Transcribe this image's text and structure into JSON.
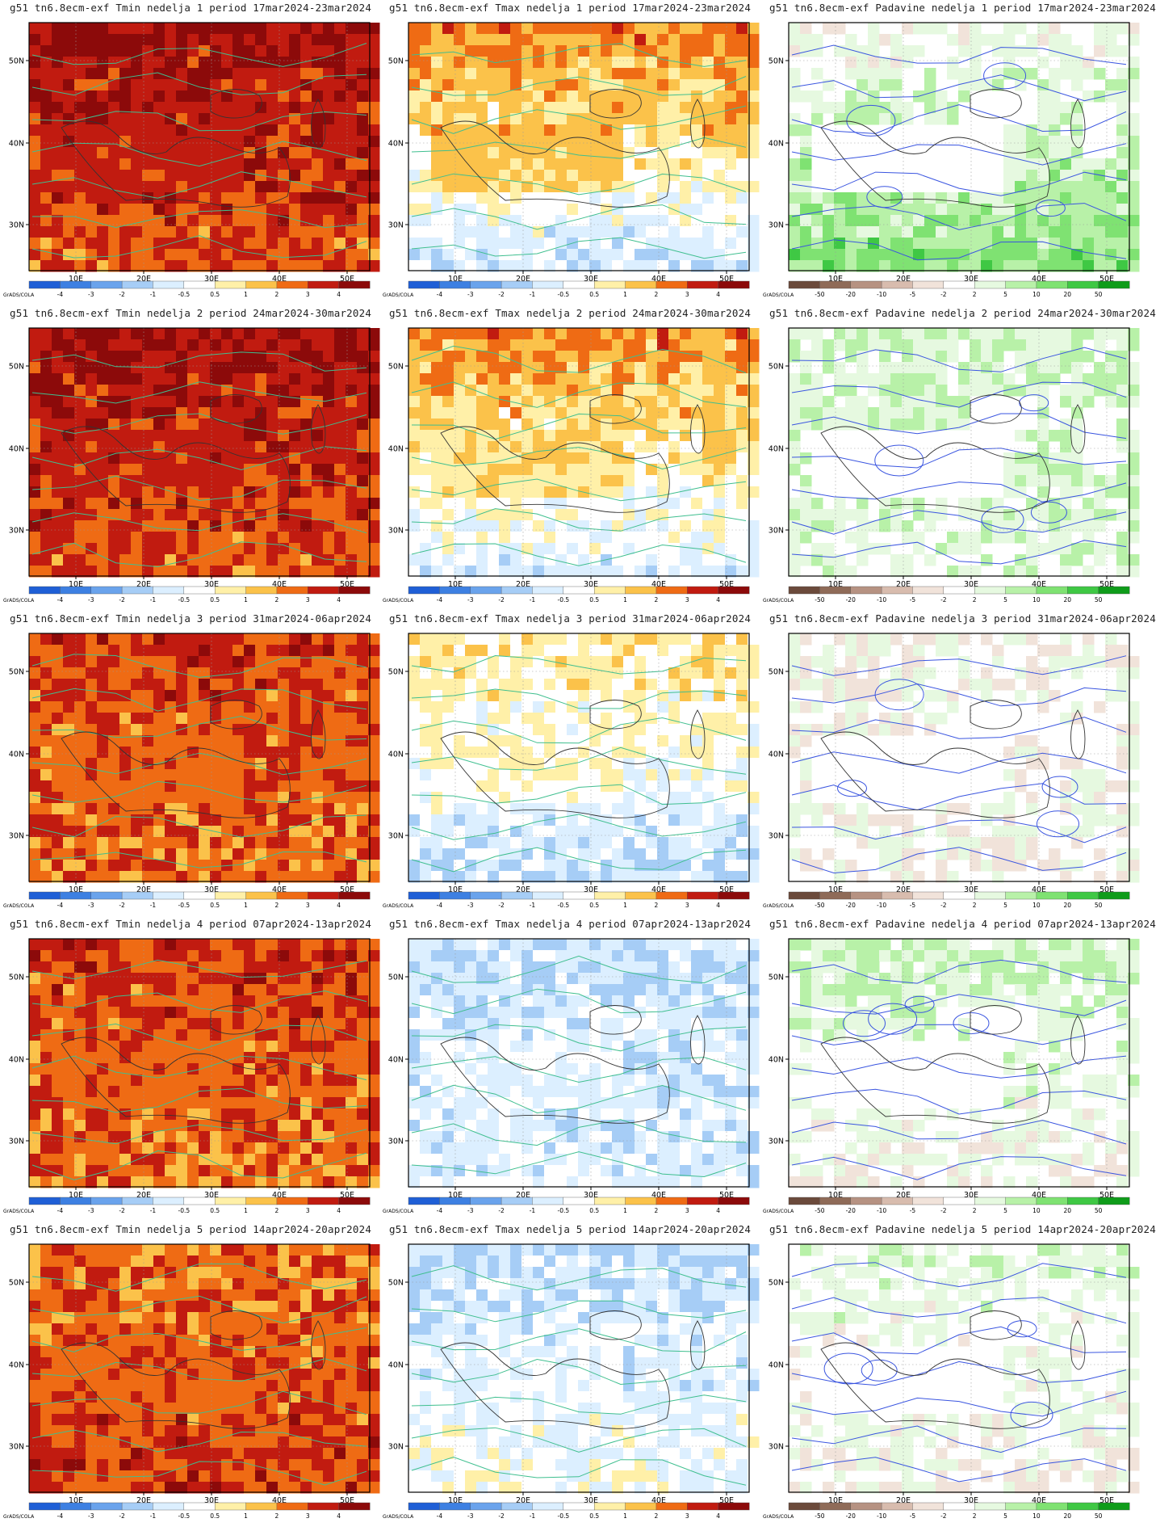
{
  "map": {
    "lat_ticks": [
      "50N",
      "40N",
      "30N"
    ],
    "lon_ticks": [
      "10E",
      "20E",
      "30E",
      "40E",
      "50E"
    ],
    "credit": "GrADS/COLA"
  },
  "legends": {
    "temperature": {
      "labels": [
        "-4",
        "-3",
        "-2",
        "-1",
        "-0.5",
        "0.5",
        "1",
        "2",
        "3",
        "4"
      ],
      "colors": [
        "#1f5fd6",
        "#3d80e2",
        "#6aa3ec",
        "#a6cdf6",
        "#dcefff",
        "#ffffff",
        "#fff0a8",
        "#fbc24a",
        "#ef6b14",
        "#c11b10",
        "#8c0a0a"
      ]
    },
    "precipitation": {
      "labels": [
        "-50",
        "-20",
        "-10",
        "-5",
        "-2",
        "2",
        "5",
        "10",
        "20",
        "50"
      ],
      "colors": [
        "#6b4a3b",
        "#8f6b58",
        "#b69282",
        "#d8bcae",
        "#f1e3da",
        "#ffffff",
        "#e6f9e0",
        "#b8f1a8",
        "#7fe272",
        "#3fc844",
        "#0f9c1a"
      ]
    }
  },
  "rows": [
    {
      "titles": [
        "g51 tn6.8ecm-exf Tmin nedelja 1 period 17mar2024-23mar2024",
        "g51 tn6.8ecm-exf Tmax nedelja 1 period 17mar2024-23mar2024",
        "g51 tn6.8ecm-exf Padavine nedelja 1 period 17mar2024-23mar2024"
      ],
      "tmin": {
        "base": 9,
        "north": 10,
        "south": 8
      },
      "tmax": {
        "base": 8,
        "north": 8,
        "south": 2
      },
      "prec": {
        "base": 5,
        "north": 5,
        "south": 9
      }
    },
    {
      "titles": [
        "g51 tn6.8ecm-exf Tmin nedelja 2 period 24mar2024-30mar2024",
        "g51 tn6.8ecm-exf Tmax nedelja 2 period 24mar2024-30mar2024",
        "g51 tn6.8ecm-exf Padavine nedelja 2 period 24mar2024-30mar2024"
      ],
      "tmin": {
        "base": 9,
        "north": 10,
        "south": 8
      },
      "tmax": {
        "base": 7,
        "north": 8,
        "south": 3
      },
      "prec": {
        "base": 5,
        "north": 7,
        "south": 6
      }
    },
    {
      "titles": [
        "g51 tn6.8ecm-exf Tmin nedelja 3 period 31mar2024-06apr2024",
        "g51 tn6.8ecm-exf Tmax nedelja 3 period 31mar2024-06apr2024",
        "g51 tn6.8ecm-exf Padavine nedelja 3 period 31mar2024-06apr2024"
      ],
      "tmin": {
        "base": 8,
        "north": 9,
        "south": 8
      },
      "tmax": {
        "base": 6,
        "north": 6,
        "south": 3
      },
      "prec": {
        "base": 5,
        "north": 5,
        "south": 5
      }
    },
    {
      "titles": [
        "g51 tn6.8ecm-exf Tmin nedelja 4 period 07apr2024-13apr2024",
        "g51 tn6.8ecm-exf Tmax nedelja 4 period 07apr2024-13apr2024",
        "g51 tn6.8ecm-exf Padavine nedelja 4 period 07apr2024-13apr2024"
      ],
      "tmin": {
        "base": 8,
        "north": 9,
        "south": 8
      },
      "tmax": {
        "base": 5,
        "north": 3,
        "south": 4
      },
      "prec": {
        "base": 5,
        "north": 7,
        "south": 5
      }
    },
    {
      "titles": [
        "g51 tn6.8ecm-exf Tmin nedelja 5 period 14apr2024-20apr2024",
        "g51 tn6.8ecm-exf Tmax nedelja 5 period 14apr2024-20apr2024",
        "g51 tn6.8ecm-exf Padavine nedelja 5 period 14apr2024-20apr2024"
      ],
      "tmin": {
        "base": 8,
        "north": 8,
        "south": 9
      },
      "tmax": {
        "base": 5,
        "north": 3,
        "south": 5
      },
      "prec": {
        "base": 5,
        "north": 6,
        "south": 5
      }
    }
  ]
}
